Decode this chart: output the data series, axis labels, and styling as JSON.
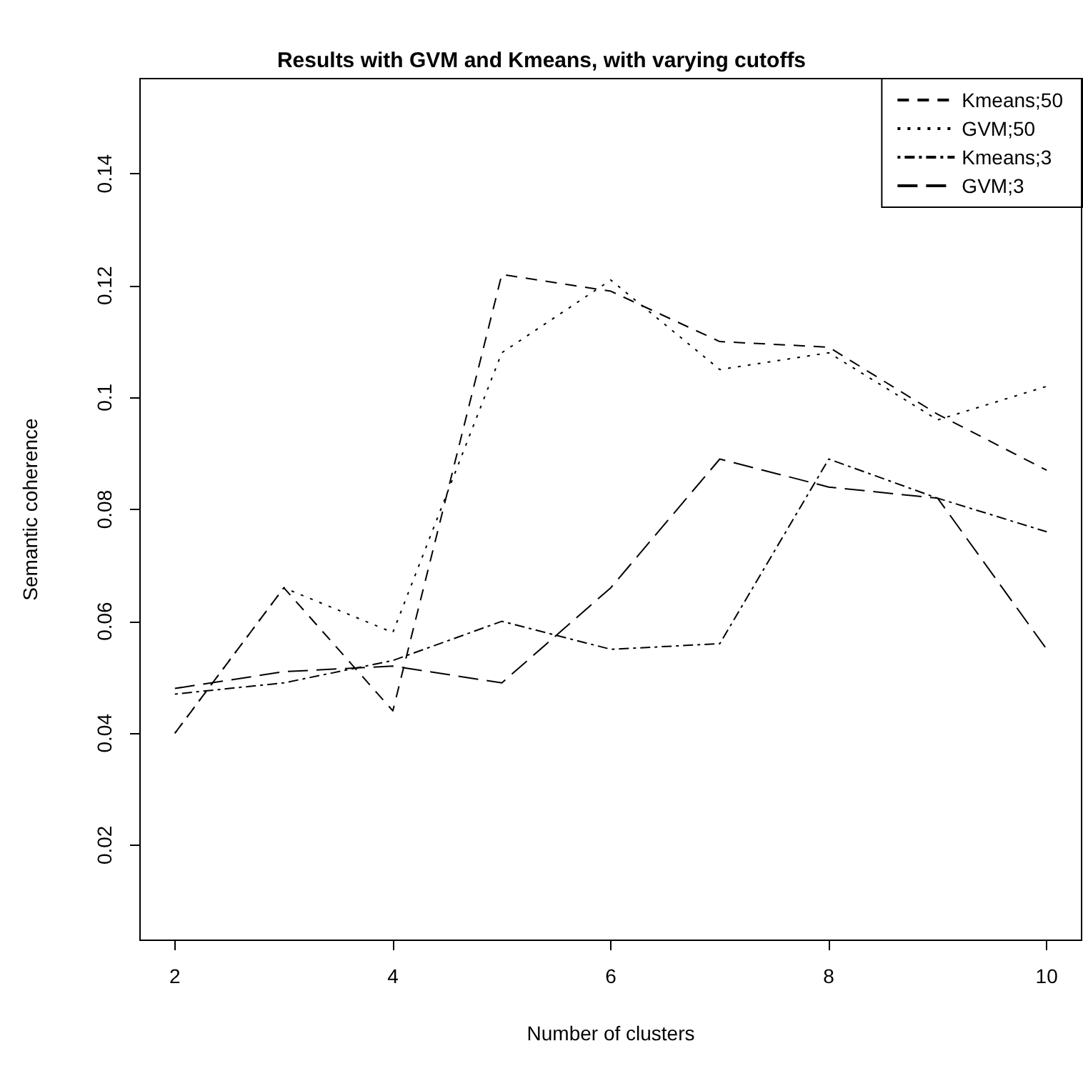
{
  "chart_data": {
    "type": "line",
    "title": "Results with GVM and Kmeans, with varying cutoffs",
    "xlabel": "Number of clusters",
    "ylabel": "Semantic coherence",
    "x": [
      2,
      3,
      4,
      5,
      6,
      7,
      8,
      9,
      10
    ],
    "series": [
      {
        "name": "Kmeans;50",
        "color": "#000000",
        "line_style": "dashed",
        "values": [
          0.04,
          0.066,
          0.044,
          0.122,
          0.119,
          0.11,
          0.109,
          0.097,
          0.087
        ]
      },
      {
        "name": "GVM;50",
        "color": "#000000",
        "line_style": "dotted",
        "values": [
          0.04,
          0.066,
          0.058,
          0.108,
          0.121,
          0.105,
          0.108,
          0.096,
          0.102
        ]
      },
      {
        "name": "Kmeans;3",
        "color": "#000000",
        "line_style": "dashdot",
        "values": [
          0.047,
          0.049,
          0.053,
          0.06,
          0.055,
          0.056,
          0.089,
          0.082,
          0.076
        ]
      },
      {
        "name": "GVM;3",
        "color": "#000000",
        "line_style": "longdash",
        "values": [
          0.048,
          0.051,
          0.052,
          0.049,
          0.066,
          0.089,
          0.084,
          0.082,
          0.055
        ]
      }
    ],
    "xlim": [
      1.68,
      10.32
    ],
    "xticks": [
      2,
      4,
      6,
      8,
      10
    ],
    "ylim": [
      0.003,
      0.157
    ],
    "yticks": [
      0.02,
      0.04,
      0.06,
      0.08,
      0.1,
      0.12,
      0.14
    ],
    "grid": false,
    "legend": "top right",
    "marker": "none"
  }
}
